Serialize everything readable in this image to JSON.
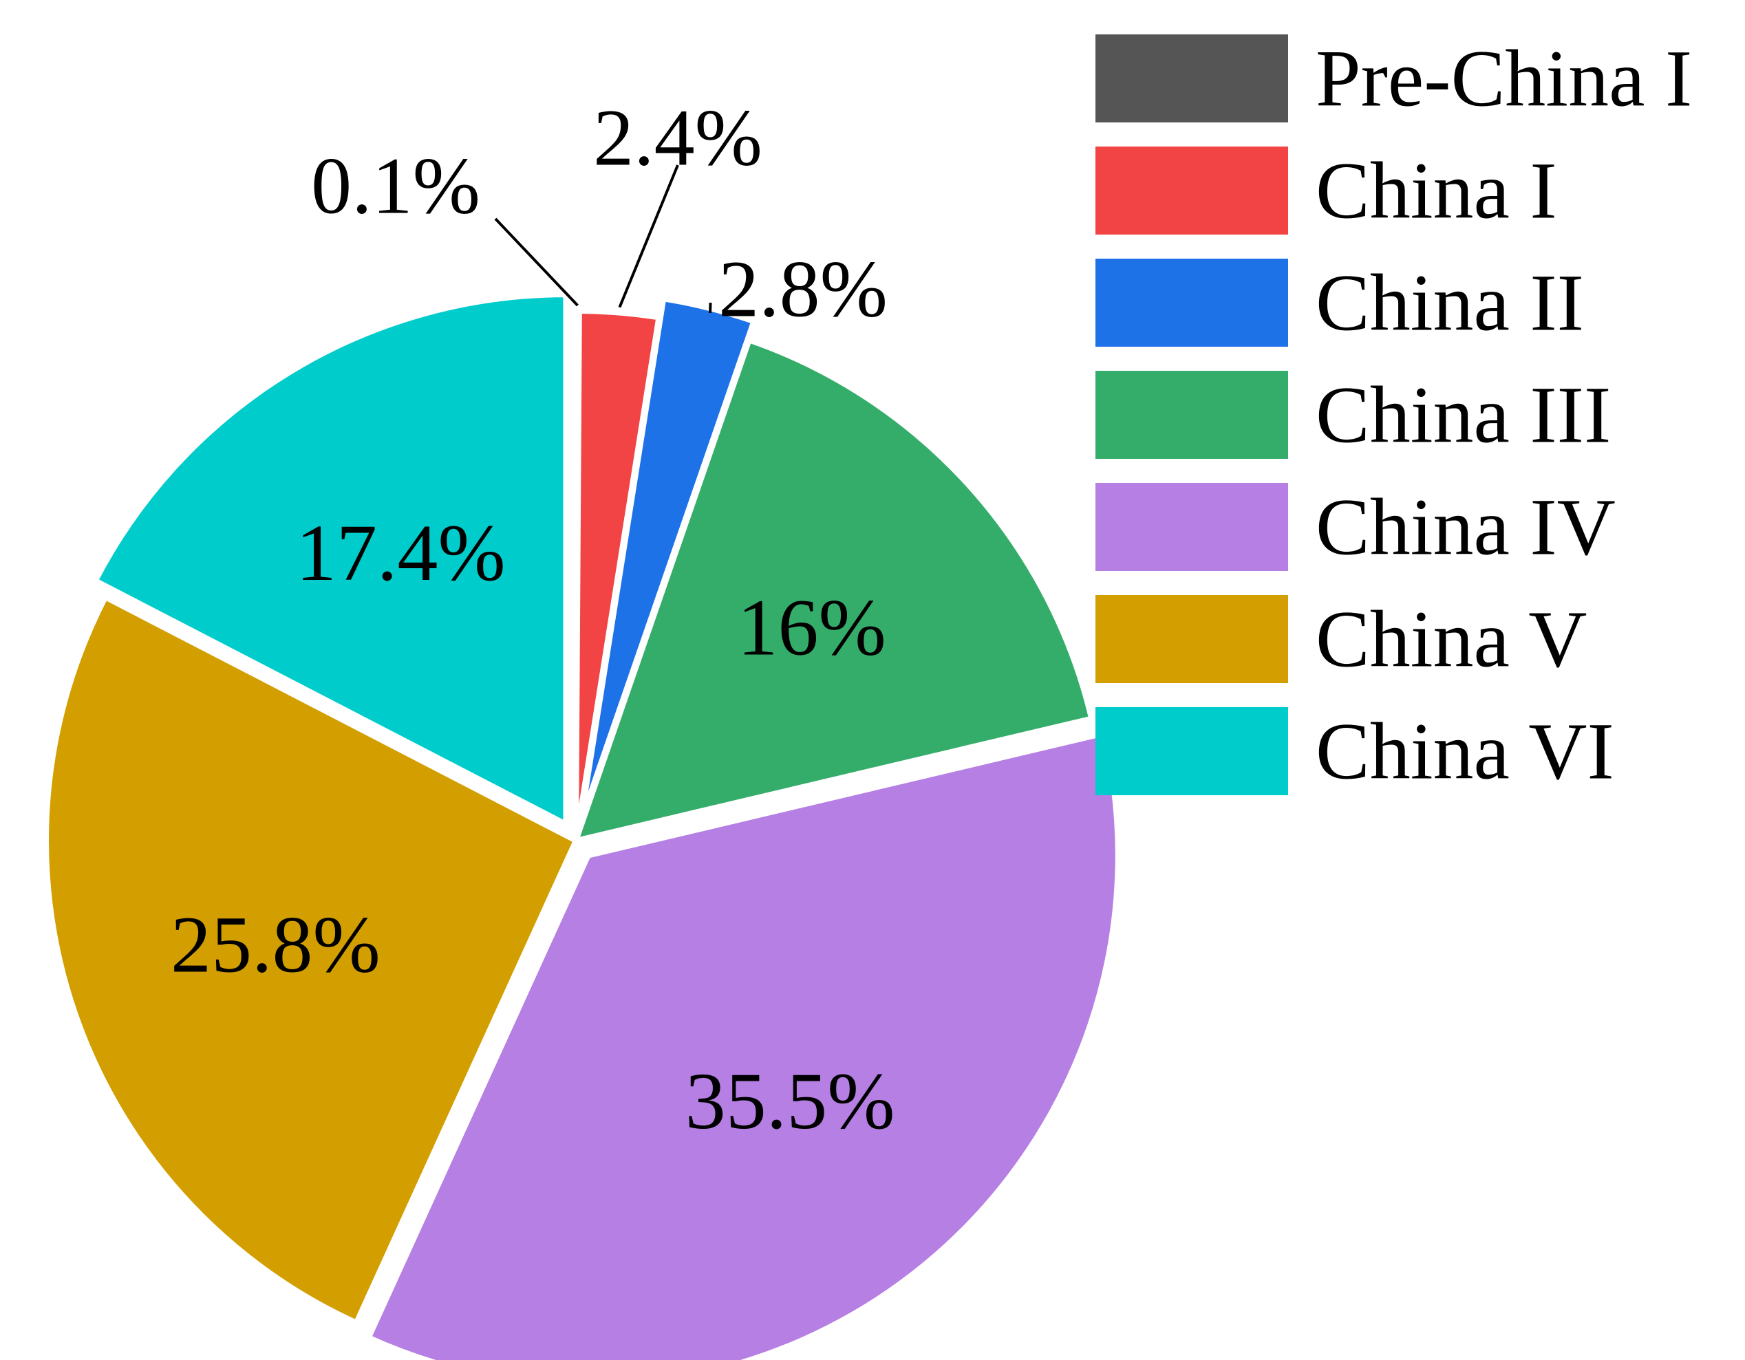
{
  "chart_data": {
    "type": "pie",
    "title": "",
    "unit": "%",
    "start_angle_deg": 0,
    "direction": "clockwise",
    "legend_position": "top-right",
    "slices": [
      {
        "name": "Pre-China I",
        "value": 0.1,
        "label": "0.1%",
        "color": "#555555",
        "label_position": "outside",
        "exploded": false
      },
      {
        "name": "China I",
        "value": 2.4,
        "label": "2.4%",
        "color": "#f24444",
        "label_position": "outside",
        "exploded": false
      },
      {
        "name": "China II",
        "value": 2.8,
        "label": "2.8%",
        "color": "#1e72e8",
        "label_position": "outside",
        "exploded": true
      },
      {
        "name": "China III",
        "value": 16,
        "label": "16%",
        "color": "#35ad6a",
        "label_position": "inside",
        "exploded": false
      },
      {
        "name": "China IV",
        "value": 35.5,
        "label": "35.5%",
        "color": "#b57fe3",
        "label_position": "inside",
        "exploded": true
      },
      {
        "name": "China V",
        "value": 25.8,
        "label": "25.8%",
        "color": "#d39e00",
        "label_position": "inside",
        "exploded": false
      },
      {
        "name": "China VI",
        "value": 17.4,
        "label": "17.4%",
        "color": "#00cccc",
        "label_position": "inside",
        "exploded": true
      }
    ]
  }
}
